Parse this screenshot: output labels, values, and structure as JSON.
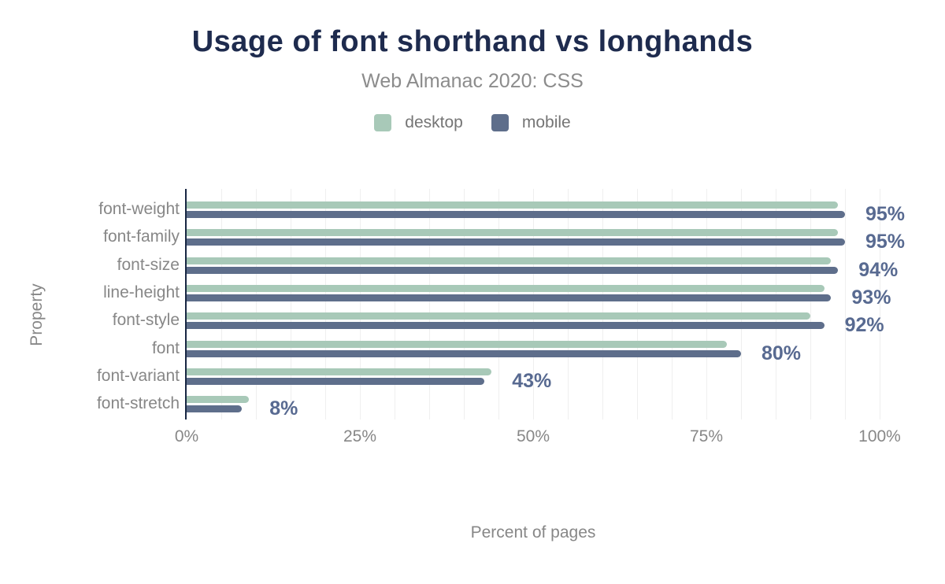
{
  "header": {
    "title": "Usage of font shorthand vs longhands",
    "subtitle": "Web Almanac 2020: CSS"
  },
  "legend": [
    {
      "label": "desktop",
      "color": "#a8c9b8"
    },
    {
      "label": "mobile",
      "color": "#5e6e8b"
    }
  ],
  "colors": {
    "title": "#1e2b4e",
    "axis_line": "#182743",
    "desktop_bar": "#a8c9b8",
    "mobile_bar": "#5e6e8b",
    "value_label": "#586a91",
    "muted_text": "#878787",
    "subtitle_text": "#8c8c8c",
    "gridline": "#efefef"
  },
  "chart_data": {
    "type": "bar",
    "orientation": "horizontal",
    "title": "Usage of font shorthand vs longhands",
    "subtitle": "Web Almanac 2020: CSS",
    "xlabel": "Percent of pages",
    "ylabel": "Property",
    "xlim": [
      0,
      100
    ],
    "x_ticks": [
      "0%",
      "25%",
      "50%",
      "75%",
      "100%"
    ],
    "grid": true,
    "grid_step_percent": 5,
    "legend_position": "top",
    "categories": [
      "font-weight",
      "font-family",
      "font-size",
      "line-height",
      "font-style",
      "font",
      "font-variant",
      "font-stretch"
    ],
    "series": [
      {
        "name": "desktop",
        "color": "#a8c9b8",
        "values": [
          94,
          94,
          93,
          92,
          90,
          78,
          44,
          9
        ]
      },
      {
        "name": "mobile",
        "color": "#5e6e8b",
        "values": [
          95,
          95,
          94,
          93,
          92,
          80,
          43,
          8
        ]
      }
    ],
    "value_labels": [
      "95%",
      "95%",
      "94%",
      "93%",
      "92%",
      "80%",
      "43%",
      "8%"
    ],
    "value_labels_series": "mobile"
  }
}
